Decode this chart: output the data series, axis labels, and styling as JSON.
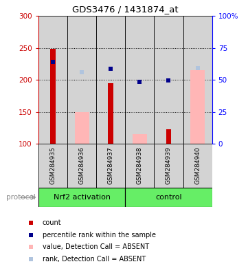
{
  "title": "GDS3476 / 1431874_at",
  "samples": [
    "GSM284935",
    "GSM284936",
    "GSM284937",
    "GSM284938",
    "GSM284939",
    "GSM284940"
  ],
  "groups": [
    "Nrf2 activation",
    "Nrf2 activation",
    "Nrf2 activation",
    "control",
    "control",
    "control"
  ],
  "group_labels": [
    "Nrf2 activation",
    "control"
  ],
  "ylim_left": [
    100,
    300
  ],
  "ylim_right": [
    0,
    100
  ],
  "yticks_left": [
    100,
    150,
    200,
    250,
    300
  ],
  "yticks_right": [
    0,
    25,
    50,
    75,
    100
  ],
  "ytick_labels_right": [
    "0",
    "25",
    "50",
    "75",
    "100%"
  ],
  "count_values": [
    248,
    null,
    195,
    null,
    123,
    null
  ],
  "count_color": "#cc0000",
  "absent_value_values": [
    null,
    150,
    null,
    115,
    null,
    215
  ],
  "absent_value_color": "#ffb6b6",
  "percentile_rank_values": [
    228,
    null,
    217,
    197,
    199,
    null
  ],
  "percentile_rank_color": "#00008b",
  "absent_rank_values": [
    null,
    212,
    null,
    null,
    null,
    218
  ],
  "absent_rank_color": "#b0c4de",
  "sample_bg_color": "#d3d3d3",
  "green_color": "#66ee66",
  "protocol_label": "protocol",
  "legend_items": [
    {
      "label": "count",
      "color": "#cc0000"
    },
    {
      "label": "percentile rank within the sample",
      "color": "#00008b"
    },
    {
      "label": "value, Detection Call = ABSENT",
      "color": "#ffb6b6"
    },
    {
      "label": "rank, Detection Call = ABSENT",
      "color": "#b0c4de"
    }
  ]
}
